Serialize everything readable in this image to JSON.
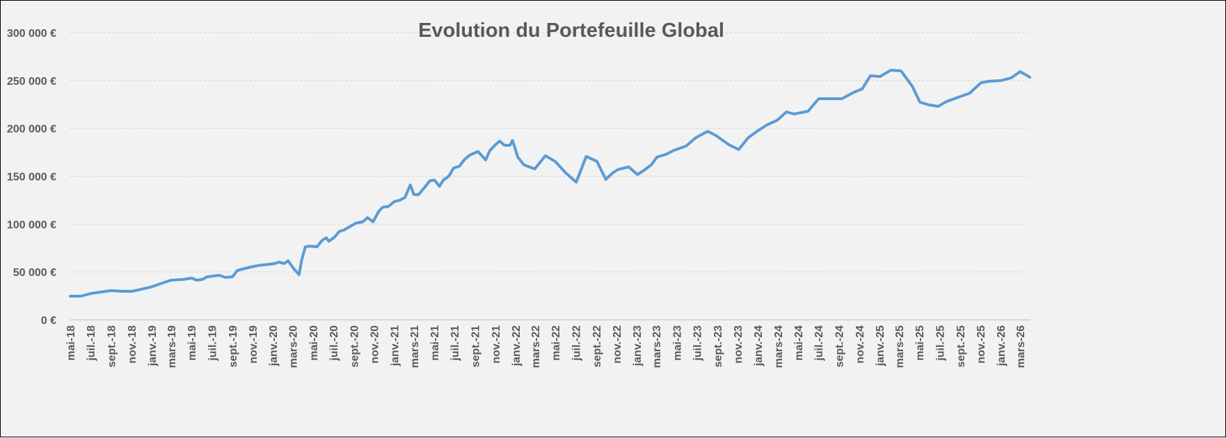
{
  "chart_data": {
    "type": "line",
    "title": "Evolution du Portefeuille Global",
    "xlabel": "",
    "ylabel": "",
    "ylim": [
      0,
      300000
    ],
    "xlim": [
      "2018-05-01",
      "2026-04-01"
    ],
    "grid": true,
    "legend": "none",
    "line_color": "#5b9bd5",
    "y_ticks": [
      {
        "value": 0,
        "label": "0 €"
      },
      {
        "value": 50000,
        "label": "50 000 €"
      },
      {
        "value": 100000,
        "label": "100 000 €"
      },
      {
        "value": 150000,
        "label": "150 000 €"
      },
      {
        "value": 200000,
        "label": "200 000 €"
      },
      {
        "value": 250000,
        "label": "250 000 €"
      },
      {
        "value": 300000,
        "label": "300 000 €"
      }
    ],
    "x_ticks": [
      "mai-18",
      "juil.-18",
      "sept.-18",
      "nov.-18",
      "janv.-19",
      "mars-19",
      "mai-19",
      "juil.-19",
      "sept.-19",
      "nov.-19",
      "janv.-20",
      "mars-20",
      "mai-20",
      "juil.-20",
      "sept.-20",
      "nov.-20",
      "janv.-21",
      "mars-21",
      "mai-21",
      "juil.-21",
      "sept.-21",
      "nov.-21",
      "janv.-22",
      "mars-22",
      "mai-22",
      "juil.-22",
      "sept.-22",
      "nov.-22",
      "janv.-23",
      "mars-23",
      "mai-23",
      "juil.-23",
      "sept.-23",
      "nov.-23",
      "janv.-24",
      "mars-24",
      "mai-24",
      "juil.-24",
      "sept.-24",
      "nov.-24",
      "janv.-25",
      "mars-25",
      "mai-25",
      "juil.-25",
      "sept.-25",
      "nov.-25",
      "janv.-26",
      "mars-26"
    ],
    "series": [
      {
        "points": [
          [
            "2018-05-01",
            24700
          ],
          [
            "2018-06-02",
            24700
          ],
          [
            "2018-07-03",
            27600
          ],
          [
            "2018-09-01",
            30500
          ],
          [
            "2018-10-06",
            29800
          ],
          [
            "2018-11-03",
            29800
          ],
          [
            "2018-12-28",
            34100
          ],
          [
            "2019-02-28",
            41400
          ],
          [
            "2019-04-05",
            42100
          ],
          [
            "2019-05-02",
            43600
          ],
          [
            "2019-05-16",
            41400
          ],
          [
            "2019-06-03",
            42100
          ],
          [
            "2019-06-17",
            45000
          ],
          [
            "2019-07-24",
            46500
          ],
          [
            "2019-08-11",
            44300
          ],
          [
            "2019-09-02",
            45000
          ],
          [
            "2019-09-16",
            51600
          ],
          [
            "2019-10-27",
            55200
          ],
          [
            "2019-11-18",
            56700
          ],
          [
            "2020-01-06",
            58800
          ],
          [
            "2020-01-20",
            60300
          ],
          [
            "2020-02-04",
            58800
          ],
          [
            "2020-02-16",
            61700
          ],
          [
            "2020-03-05",
            53000
          ],
          [
            "2020-03-20",
            47200
          ],
          [
            "2020-03-28",
            62500
          ],
          [
            "2020-04-08",
            76300
          ],
          [
            "2020-04-22",
            77000
          ],
          [
            "2020-05-13",
            76300
          ],
          [
            "2020-05-28",
            82800
          ],
          [
            "2020-06-10",
            85700
          ],
          [
            "2020-06-18",
            82100
          ],
          [
            "2020-07-05",
            86400
          ],
          [
            "2020-07-19",
            92300
          ],
          [
            "2020-08-02",
            93700
          ],
          [
            "2020-08-16",
            96600
          ],
          [
            "2020-09-07",
            101000
          ],
          [
            "2020-09-28",
            102400
          ],
          [
            "2020-10-12",
            106800
          ],
          [
            "2020-10-29",
            102400
          ],
          [
            "2020-11-15",
            113300
          ],
          [
            "2020-11-27",
            117700
          ],
          [
            "2020-12-14",
            118400
          ],
          [
            "2021-01-01",
            123500
          ],
          [
            "2021-01-17",
            124900
          ],
          [
            "2021-02-02",
            127800
          ],
          [
            "2021-02-18",
            140900
          ],
          [
            "2021-03-01",
            130800
          ],
          [
            "2021-03-15",
            130800
          ],
          [
            "2021-04-03",
            138700
          ],
          [
            "2021-04-18",
            145300
          ],
          [
            "2021-05-02",
            146000
          ],
          [
            "2021-05-17",
            139500
          ],
          [
            "2021-05-29",
            146000
          ],
          [
            "2021-06-15",
            150400
          ],
          [
            "2021-06-28",
            158400
          ],
          [
            "2021-07-16",
            160500
          ],
          [
            "2021-08-01",
            167800
          ],
          [
            "2021-08-17",
            172200
          ],
          [
            "2021-09-10",
            175800
          ],
          [
            "2021-10-03",
            167100
          ],
          [
            "2021-10-15",
            176500
          ],
          [
            "2021-11-02",
            183100
          ],
          [
            "2021-11-14",
            186700
          ],
          [
            "2021-11-29",
            182300
          ],
          [
            "2021-12-15",
            182300
          ],
          [
            "2021-12-23",
            187400
          ],
          [
            "2022-01-08",
            170000
          ],
          [
            "2022-01-26",
            162000
          ],
          [
            "2022-02-28",
            157600
          ],
          [
            "2022-04-01",
            171400
          ],
          [
            "2022-04-30",
            165600
          ],
          [
            "2022-06-02",
            153300
          ],
          [
            "2022-07-03",
            143800
          ],
          [
            "2022-08-02",
            170700
          ],
          [
            "2022-09-03",
            165600
          ],
          [
            "2022-09-30",
            146700
          ],
          [
            "2022-10-20",
            153300
          ],
          [
            "2022-11-05",
            156900
          ],
          [
            "2022-12-08",
            159800
          ],
          [
            "2023-01-03",
            151800
          ],
          [
            "2023-01-23",
            156200
          ],
          [
            "2023-02-14",
            162000
          ],
          [
            "2023-03-03",
            170000
          ],
          [
            "2023-03-30",
            172900
          ],
          [
            "2023-04-24",
            177200
          ],
          [
            "2023-05-30",
            181600
          ],
          [
            "2023-06-28",
            190300
          ],
          [
            "2023-08-03",
            196900
          ],
          [
            "2023-08-28",
            192500
          ],
          [
            "2023-10-05",
            183100
          ],
          [
            "2023-11-04",
            178000
          ],
          [
            "2023-12-03",
            190300
          ],
          [
            "2024-01-01",
            197600
          ],
          [
            "2024-01-27",
            203400
          ],
          [
            "2024-02-28",
            208500
          ],
          [
            "2024-03-27",
            217200
          ],
          [
            "2024-04-19",
            215000
          ],
          [
            "2024-05-31",
            217900
          ],
          [
            "2024-07-02",
            231000
          ],
          [
            "2024-09-10",
            231000
          ],
          [
            "2024-10-15",
            237500
          ],
          [
            "2024-11-10",
            241200
          ],
          [
            "2024-12-05",
            255000
          ],
          [
            "2025-01-03",
            254200
          ],
          [
            "2025-02-04",
            260800
          ],
          [
            "2025-03-07",
            260100
          ],
          [
            "2025-04-10",
            244100
          ],
          [
            "2025-05-03",
            227400
          ],
          [
            "2025-05-30",
            224500
          ],
          [
            "2025-06-27",
            223000
          ],
          [
            "2025-07-22",
            228100
          ],
          [
            "2025-09-30",
            236800
          ],
          [
            "2025-11-03",
            247700
          ],
          [
            "2025-11-28",
            249200
          ],
          [
            "2026-01-01",
            249900
          ],
          [
            "2026-02-02",
            252800
          ],
          [
            "2026-03-01",
            259300
          ],
          [
            "2026-03-30",
            253500
          ]
        ]
      }
    ]
  }
}
